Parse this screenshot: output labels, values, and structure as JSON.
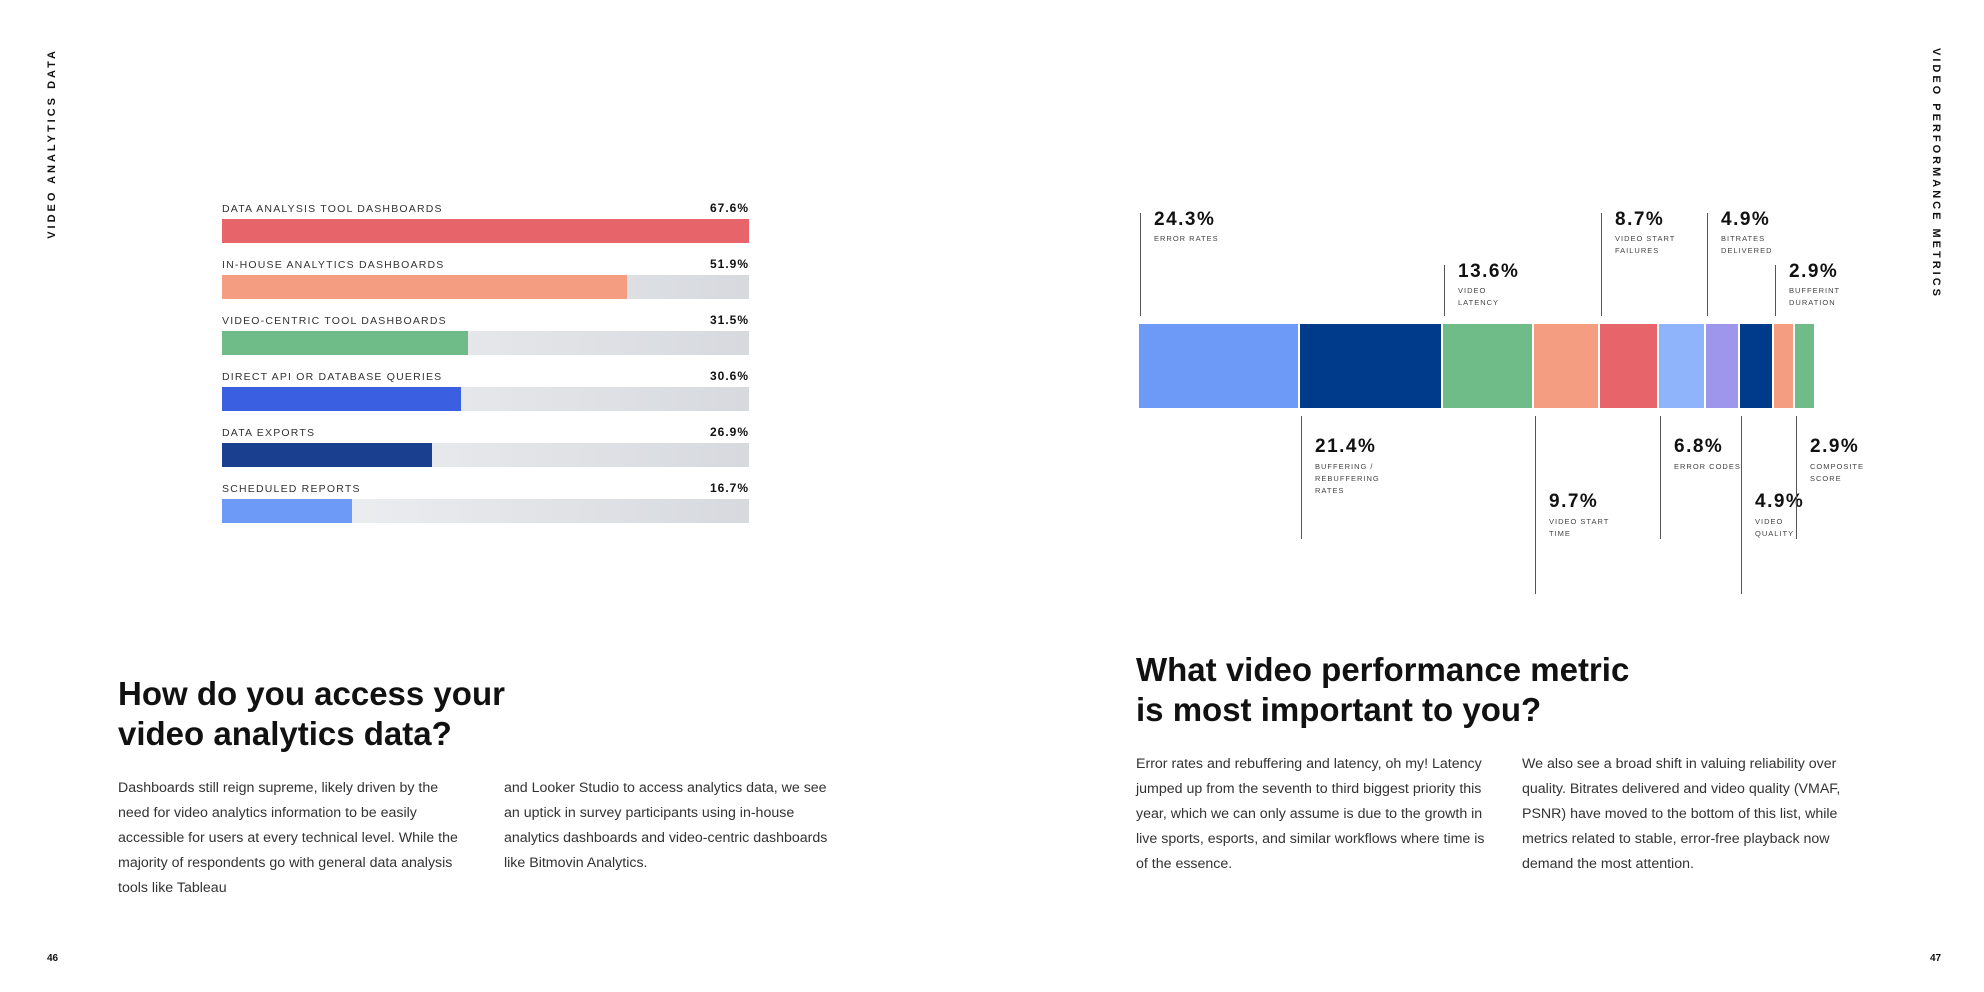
{
  "left_page": {
    "side_label": "VIDEO ANALYTICS DATA",
    "page_number": "46",
    "heading_line1": "How do you access your",
    "heading_line2": "video analytics data?",
    "col1": "Dashboards still reign supreme, likely driven by the need for video analytics information to be easily accessible for users at every technical level. While the majority of respondents go with general data analysis tools like Tableau",
    "col2": "and Looker Studio to access analytics data, we see an uptick in survey participants using in-house analytics dashboards and video-centric dashboards like Bitmovin Analytics."
  },
  "right_page": {
    "side_label": "VIDEO PERFORMANCE METRICS",
    "page_number": "47",
    "heading_line1": "What video performance metric",
    "heading_line2": "is most important to you?",
    "col1": "Error rates and rebuffering and latency, oh my! Latency jumped up from the seventh to third biggest priority this year, which we can only assume is due to the growth in live sports, esports, and similar workflows where time is of the essence.",
    "col2": "We also see a broad shift in valuing reliability over quality. Bitrates delivered and video quality (VMAF, PSNR) have moved to the bottom of this list, while metrics related to stable, error-free playback now demand the most attention."
  },
  "chart_data": [
    {
      "type": "bar",
      "orientation": "horizontal",
      "categories": [
        "DATA ANALYSIS TOOL DASHBOARDS",
        "IN-HOUSE ANALYTICS DASHBOARDS",
        "VIDEO-CENTRIC TOOL DASHBOARDS",
        "DIRECT API OR DATABASE QUERIES",
        "DATA EXPORTS",
        "SCHEDULED REPORTS"
      ],
      "values": [
        67.6,
        51.9,
        31.5,
        30.6,
        26.9,
        16.7
      ],
      "labels": [
        "67.6%",
        "51.9%",
        "31.5%",
        "30.6%",
        "26.9%",
        "16.7%"
      ],
      "colors": [
        "#e8646b",
        "#f59d80",
        "#6fbc88",
        "#3a5fe0",
        "#1a3f8f",
        "#6d9af7"
      ],
      "xlim": [
        0,
        67.6
      ]
    },
    {
      "type": "bar",
      "orientation": "stacked-horizontal",
      "items": [
        {
          "label": "ERROR RATES",
          "pct": "24.3%",
          "value": 24.3,
          "color": "#6d9af7",
          "pos": "top"
        },
        {
          "label": "BUFFERING / REBUFFERING RATES",
          "pct": "21.4%",
          "value": 21.4,
          "color": "#003a8a",
          "pos": "bottom"
        },
        {
          "label": "VIDEO LATENCY",
          "pct": "13.6%",
          "value": 13.6,
          "color": "#6fbc88",
          "pos": "top"
        },
        {
          "label": "VIDEO START TIME",
          "pct": "9.7%",
          "value": 9.7,
          "color": "#f59d80",
          "pos": "bottom"
        },
        {
          "label": "VIDEO START FAILURES",
          "pct": "8.7%",
          "value": 8.7,
          "color": "#e8646b",
          "pos": "top"
        },
        {
          "label": "ERROR CODES",
          "pct": "6.8%",
          "value": 6.8,
          "color": "#8fb4fb",
          "pos": "bottom"
        },
        {
          "label": "BITRATES DELIVERED",
          "pct": "4.9%",
          "value": 4.9,
          "color": "#9d96ec",
          "pos": "top"
        },
        {
          "label": "VIDEO QUALITY",
          "pct": "4.9%",
          "value": 4.9,
          "color": "#003a8a",
          "pos": "bottom"
        },
        {
          "label": "BUFFERINT DURATION",
          "pct": "2.9%",
          "value": 2.9,
          "color": "#f59d80",
          "pos": "top"
        },
        {
          "label": "COMPOSITE SCORE",
          "pct": "2.9%",
          "value": 2.9,
          "color": "#6fbc88",
          "pos": "bottom"
        }
      ]
    }
  ]
}
